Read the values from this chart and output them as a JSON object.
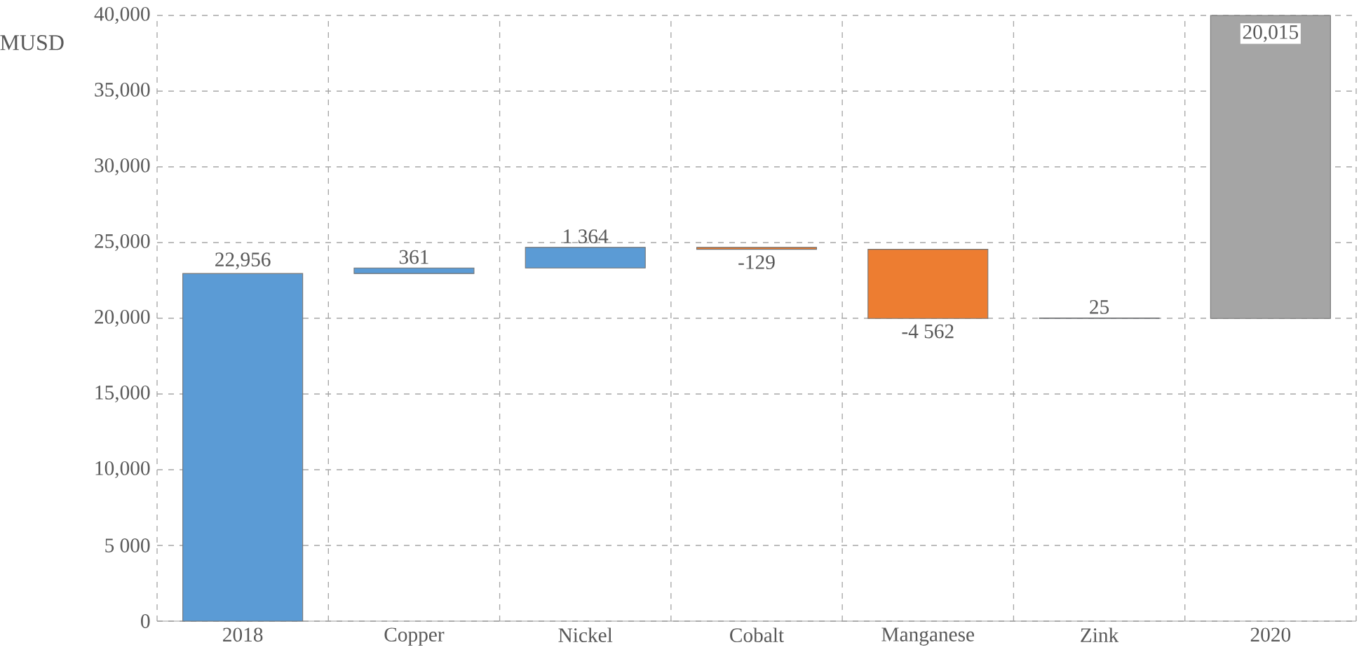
{
  "chart_data": {
    "type": "bar",
    "ylabel": "MUSD",
    "categories": [
      "2018",
      "Copper",
      "Nickel",
      "Cobalt",
      "Manganese",
      "Zink",
      "2020"
    ],
    "values": [
      22956,
      361,
      1364,
      -129,
      -4562,
      25,
      20015
    ],
    "base": [
      0,
      22956,
      23317,
      24681,
      24552,
      19990,
      19985
    ],
    "colors": [
      "#5b9bd5",
      "#5b9bd5",
      "#5b9bd5",
      "#ed7d31",
      "#ed7d31",
      "#5b9bd5",
      "#a5a5a5"
    ],
    "value_labels": [
      "22,956",
      "361",
      "1 364",
      "-129",
      "-4 562",
      "25",
      "20,015"
    ],
    "ylim": [
      0,
      40000
    ],
    "yticks": [
      0,
      {
        "value": 5000,
        "label": "5 000"
      },
      {
        "value": 10000,
        "label": "10,000"
      },
      {
        "value": 15000,
        "label": "15,000"
      },
      {
        "value": 20000,
        "label": "20,000"
      },
      {
        "value": 25000,
        "label": "25,000"
      },
      {
        "value": 30000,
        "label": "30,000"
      },
      {
        "value": 35000,
        "label": "35,000"
      },
      {
        "value": 40000,
        "label": "40,000"
      }
    ],
    "grid": true
  }
}
